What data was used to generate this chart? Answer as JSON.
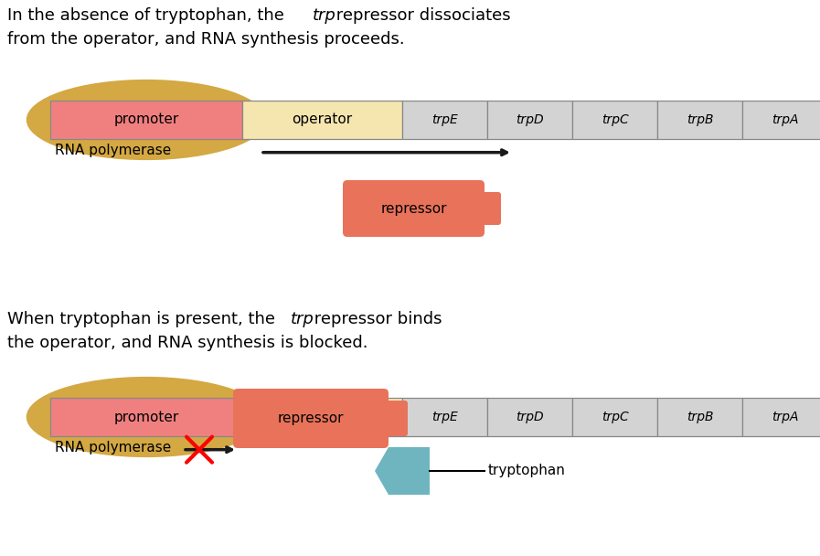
{
  "bg_color": "#ffffff",
  "promoter_color": "#f08080",
  "operator_color": "#f5e6b0",
  "gene_color": "#d3d3d3",
  "ellipse_color": "#d4a843",
  "repressor_color": "#e8735a",
  "tryptophan_color": "#6eb5c0",
  "arrow_color": "#1a1a1a",
  "genes": [
    "trpE",
    "trpD",
    "trpC",
    "trpB",
    "trpA"
  ],
  "text_top_line1_normal1": "In the absence of tryptophan, the ",
  "text_top_line1_italic": "trp",
  "text_top_line1_normal2": " repressor dissociates",
  "text_top_line2": "from the operator, and RNA synthesis proceeds.",
  "text_bot_line1_normal1": "When tryptophan is present, the ",
  "text_bot_line1_italic": "trp",
  "text_bot_line1_normal2": " repressor binds",
  "text_bot_line2": "the operator, and RNA synthesis is blocked.",
  "fontsize_text": 13,
  "fontsize_label": 11,
  "fontsize_gene": 10
}
